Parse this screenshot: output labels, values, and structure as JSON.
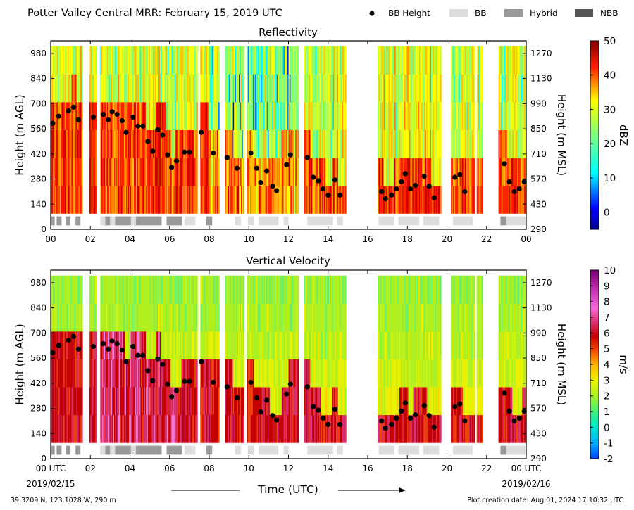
{
  "page": {
    "title": "Potter Valley Central MRR:  February 15, 2019 UTC",
    "location": "39.3209 N, 123.1028 W, 290 m",
    "created": "Plot creation date: Aug 01, 2024 17:10:32 UTC",
    "xlabel": "Time (UTC)",
    "date_start": "2019/02/15",
    "date_end": "2019/02/16"
  },
  "legend": [
    {
      "label": "BB Height",
      "kind": "dot",
      "color": "#000000"
    },
    {
      "label": "BB",
      "kind": "box",
      "color": "#dddddd"
    },
    {
      "label": "Hybrid",
      "kind": "box",
      "color": "#999999"
    },
    {
      "label": "NBB",
      "kind": "box",
      "color": "#555555"
    }
  ],
  "chart_data": [
    {
      "type": "heatmap",
      "title": "Reflectivity",
      "xlabel": "",
      "ylabel": "Height (m AGL)",
      "ylabel_right": "Height (m MSL)",
      "xlim": [
        0,
        24
      ],
      "ylim": [
        0,
        1050
      ],
      "x_ticklabels": [
        "00",
        "02",
        "04",
        "06",
        "08",
        "10",
        "12",
        "14",
        "16",
        "18",
        "20",
        "22",
        "00"
      ],
      "y_ticks": [
        0,
        140,
        280,
        420,
        560,
        700,
        840,
        980
      ],
      "y_ticks_right": [
        290,
        430,
        570,
        710,
        850,
        990,
        1130,
        1270
      ],
      "colorbar": {
        "label": "dBZ",
        "range": [
          -5,
          50
        ],
        "ticks": [
          0,
          10,
          20,
          30,
          40,
          50
        ]
      },
      "note": "Heatmap field approximated as time columns of colour by height"
    },
    {
      "type": "heatmap",
      "title": "Vertical Velocity",
      "xlabel": "Time (UTC)",
      "ylabel": "Height (m AGL)",
      "ylabel_right": "Height (m MSL)",
      "xlim": [
        0,
        24
      ],
      "ylim": [
        0,
        1050
      ],
      "x_ticklabels": [
        "00 UTC",
        "02",
        "04",
        "06",
        "08",
        "10",
        "12",
        "14",
        "16",
        "18",
        "20",
        "22",
        "00 UTC"
      ],
      "y_ticks": [
        0,
        140,
        280,
        420,
        560,
        700,
        840,
        980
      ],
      "y_ticks_right": [
        290,
        430,
        570,
        710,
        850,
        990,
        1130,
        1270
      ],
      "colorbar": {
        "label": "m/s",
        "range": [
          -2,
          10
        ],
        "ticks": [
          -2,
          -1,
          0,
          1,
          2,
          3,
          4,
          5,
          6,
          7,
          8,
          9,
          10
        ]
      }
    }
  ],
  "bb_height": {
    "hours": [
      0.1,
      0.4,
      0.9,
      1.15,
      1.4,
      2.15,
      2.65,
      2.9,
      3.1,
      3.35,
      3.6,
      3.8,
      4.15,
      4.4,
      4.65,
      4.9,
      5.15,
      5.4,
      5.65,
      5.9,
      6.1,
      6.35,
      6.75,
      7.0,
      7.6,
      8.2,
      8.9,
      9.4,
      10.1,
      10.4,
      10.6,
      10.9,
      11.2,
      11.4,
      11.9,
      12.1,
      12.95,
      13.25,
      13.5,
      13.75,
      14.0,
      14.35,
      14.6,
      16.7,
      16.9,
      17.2,
      17.45,
      17.7,
      17.9,
      18.15,
      18.4,
      18.85,
      19.1,
      19.35,
      20.4,
      20.65,
      20.9,
      22.9,
      23.15,
      23.4,
      23.65,
      23.9
    ],
    "heights": [
      590,
      630,
      660,
      680,
      610,
      625,
      640,
      610,
      655,
      640,
      605,
      540,
      625,
      575,
      575,
      490,
      435,
      555,
      525,
      415,
      345,
      380,
      430,
      430,
      540,
      425,
      400,
      340,
      425,
      340,
      260,
      325,
      240,
      215,
      360,
      415,
      400,
      290,
      270,
      225,
      190,
      275,
      190,
      210,
      170,
      190,
      225,
      265,
      310,
      225,
      245,
      295,
      240,
      175,
      290,
      305,
      210,
      365,
      265,
      210,
      225,
      265
    ]
  },
  "bb_flags": [
    {
      "t0": 0.0,
      "t1": 0.2,
      "type": "Hybrid"
    },
    {
      "t0": 0.3,
      "t1": 0.55,
      "type": "Hybrid"
    },
    {
      "t0": 0.75,
      "t1": 1.0,
      "type": "Hybrid"
    },
    {
      "t0": 1.25,
      "t1": 1.5,
      "type": "Hybrid"
    },
    {
      "t0": 2.5,
      "t1": 2.75,
      "type": "BB"
    },
    {
      "t0": 2.75,
      "t1": 3.0,
      "type": "Hybrid"
    },
    {
      "t0": 3.0,
      "t1": 3.25,
      "type": "BB"
    },
    {
      "t0": 3.25,
      "t1": 4.05,
      "type": "Hybrid"
    },
    {
      "t0": 4.05,
      "t1": 4.3,
      "type": "BB"
    },
    {
      "t0": 4.3,
      "t1": 5.6,
      "type": "Hybrid"
    },
    {
      "t0": 5.85,
      "t1": 6.65,
      "type": "Hybrid"
    },
    {
      "t0": 6.75,
      "t1": 7.3,
      "type": "BB"
    },
    {
      "t0": 7.85,
      "t1": 8.15,
      "type": "Hybrid"
    },
    {
      "t0": 9.3,
      "t1": 9.6,
      "type": "BB"
    },
    {
      "t0": 9.95,
      "t1": 10.25,
      "type": "BB"
    },
    {
      "t0": 10.5,
      "t1": 11.5,
      "type": "BB"
    },
    {
      "t0": 11.75,
      "t1": 12.0,
      "type": "BB"
    },
    {
      "t0": 12.95,
      "t1": 14.25,
      "type": "BB"
    },
    {
      "t0": 14.45,
      "t1": 14.75,
      "type": "BB"
    },
    {
      "t0": 16.55,
      "t1": 17.35,
      "type": "BB"
    },
    {
      "t0": 17.55,
      "t1": 18.6,
      "type": "BB"
    },
    {
      "t0": 18.8,
      "t1": 19.6,
      "type": "BB"
    },
    {
      "t0": 20.3,
      "t1": 21.3,
      "type": "BB"
    },
    {
      "t0": 22.7,
      "t1": 23.0,
      "type": "Hybrid"
    },
    {
      "t0": 23.0,
      "t1": 24.0,
      "type": "BB"
    }
  ],
  "data_periods": [
    {
      "t0": 0.0,
      "t1": 1.6
    },
    {
      "t0": 1.95,
      "t1": 2.3
    },
    {
      "t0": 2.5,
      "t1": 7.4
    },
    {
      "t0": 7.55,
      "t1": 8.5
    },
    {
      "t0": 8.8,
      "t1": 9.75
    },
    {
      "t0": 9.9,
      "t1": 12.5
    },
    {
      "t0": 12.8,
      "t1": 14.9
    },
    {
      "t0": 16.5,
      "t1": 19.7
    },
    {
      "t0": 20.2,
      "t1": 21.4
    },
    {
      "t0": 21.5,
      "t1": 21.8
    },
    {
      "t0": 22.6,
      "t1": 24.0
    }
  ]
}
